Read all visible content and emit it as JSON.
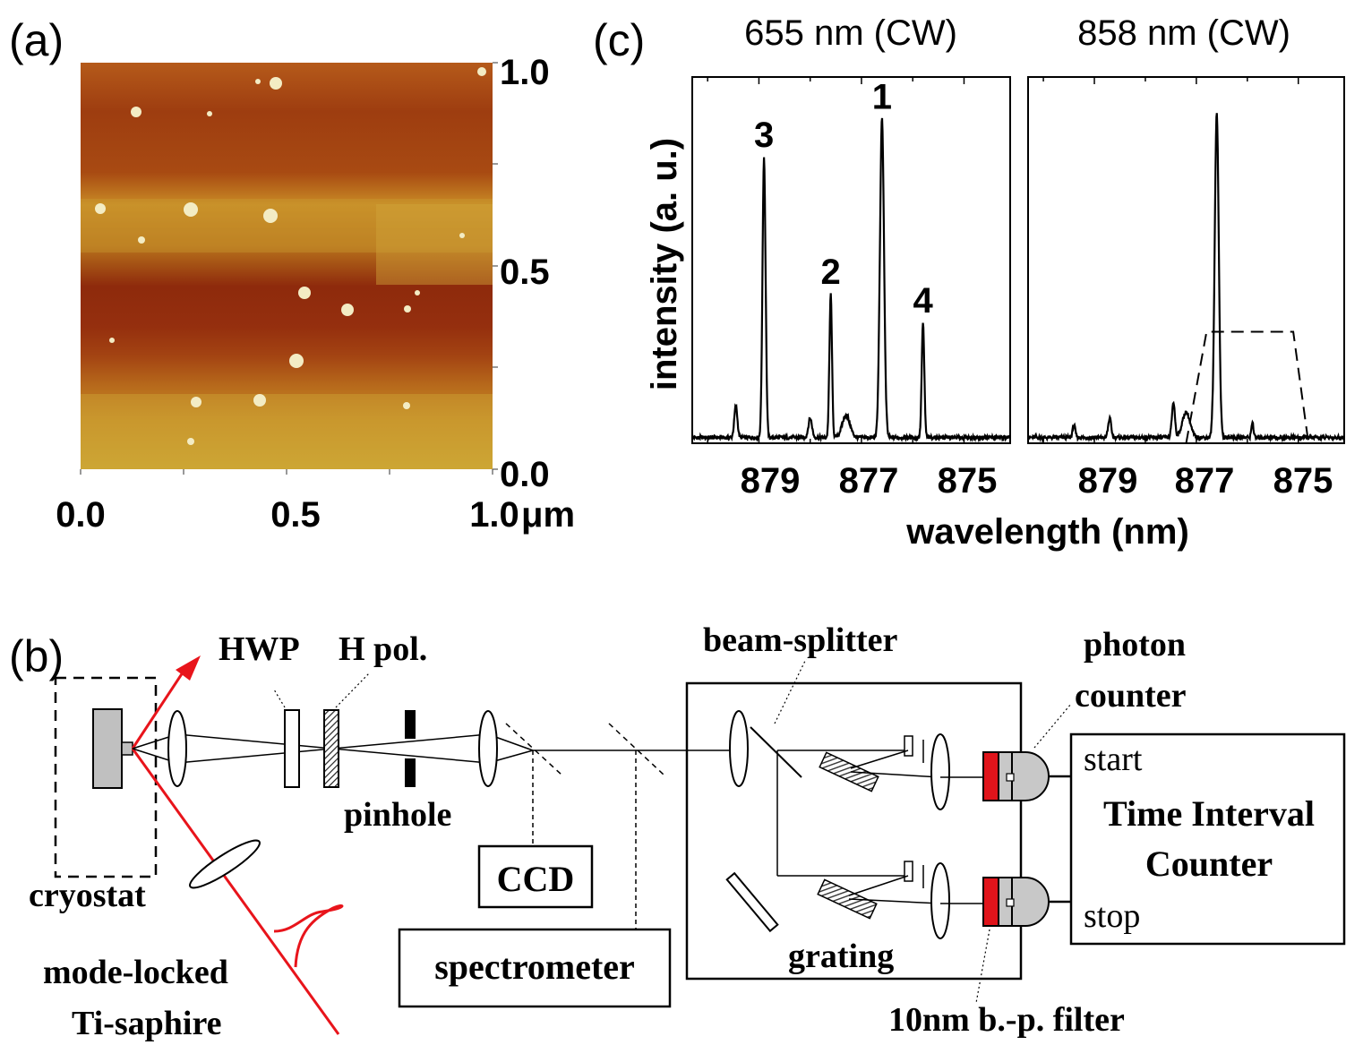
{
  "panel_a": {
    "label": "(a)",
    "y_ticks": [
      "1.0",
      "0.5",
      "0.0"
    ],
    "x_ticks": [
      "0.0",
      "0.5",
      "1.0"
    ],
    "x_unit": "μm"
  },
  "panel_c": {
    "label": "(c)",
    "ylabel": "intensity (a. u.)",
    "xlabel": "wavelength (nm)",
    "panel_titles": [
      "655 nm (CW)",
      "858 nm (CW)"
    ],
    "x_tick_labels": [
      "879",
      "877",
      "875"
    ],
    "peak_labels": [
      "1",
      "2",
      "3",
      "4"
    ]
  },
  "chart_data": [
    {
      "type": "line",
      "title": "655 nm (CW)",
      "xlabel": "wavelength (nm)",
      "ylabel": "intensity (a. u.)",
      "x_reversed": true,
      "xlim": [
        880.3,
        874.1
      ],
      "ylim": [
        0,
        1.15
      ],
      "x_ticks": [
        879,
        877,
        875
      ],
      "peaks": [
        {
          "label": "3",
          "x": 878.9,
          "y": 0.88,
          "width": 0.06
        },
        {
          "label": "2",
          "x": 877.6,
          "y": 0.45,
          "width": 0.05
        },
        {
          "label": "1",
          "x": 876.6,
          "y": 1.0,
          "width": 0.08
        },
        {
          "label": "4",
          "x": 875.8,
          "y": 0.36,
          "width": 0.05
        },
        {
          "label": "",
          "x": 879.45,
          "y": 0.1,
          "width": 0.06
        },
        {
          "label": "",
          "x": 878.0,
          "y": 0.06,
          "width": 0.07
        },
        {
          "label": "",
          "x": 877.3,
          "y": 0.07,
          "width": 0.15
        }
      ]
    },
    {
      "type": "line",
      "title": "858 nm (CW)",
      "xlabel": "wavelength (nm)",
      "ylabel": "intensity (a. u.)",
      "x_reversed": true,
      "xlim": [
        880.3,
        874.1
      ],
      "ylim": [
        0,
        1.15
      ],
      "x_ticks": [
        879,
        877,
        875
      ],
      "peaks": [
        {
          "label": "",
          "x": 876.6,
          "y": 1.02,
          "width": 0.08
        },
        {
          "label": "",
          "x": 878.7,
          "y": 0.06,
          "width": 0.06
        },
        {
          "label": "",
          "x": 877.45,
          "y": 0.11,
          "width": 0.06
        },
        {
          "label": "",
          "x": 877.2,
          "y": 0.08,
          "width": 0.15
        },
        {
          "label": "",
          "x": 875.9,
          "y": 0.05,
          "width": 0.04
        },
        {
          "label": "",
          "x": 879.4,
          "y": 0.04,
          "width": 0.05
        }
      ],
      "filter_window": [
        {
          "x": 877.2,
          "y": 0.0
        },
        {
          "x": 876.8,
          "y": 0.35
        },
        {
          "x": 875.1,
          "y": 0.35
        },
        {
          "x": 874.8,
          "y": 0.0
        }
      ]
    }
  ],
  "panel_b": {
    "label": "(b)",
    "labels": {
      "hwp": "HWP",
      "hpol": "H pol.",
      "pinhole": "pinhole",
      "cryostat": "cryostat",
      "ccd": "CCD",
      "spectrometer": "spectrometer",
      "beam_splitter": "beam-splitter",
      "photon_counter_1": "photon",
      "photon_counter_2": "counter",
      "grating": "grating",
      "filter": "10nm b.-p. filter",
      "laser_1": "mode-locked",
      "laser_2": "Ti-saphire",
      "start": "start",
      "stop": "stop",
      "tic_1": "Time Interval",
      "tic_2": "Counter"
    },
    "colors": {
      "laser": "#e8141b",
      "filter": "#e0141b",
      "detector": "#c8c8c8"
    }
  }
}
